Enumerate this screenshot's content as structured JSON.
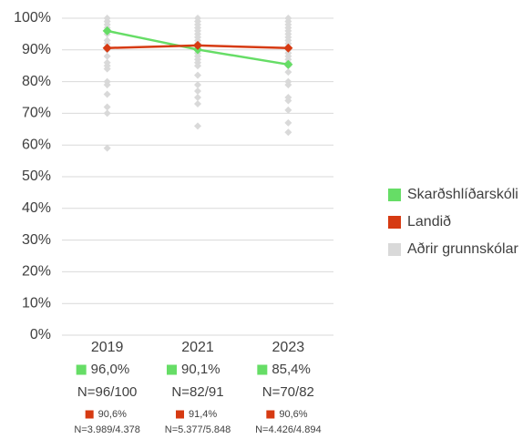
{
  "chart_data": {
    "type": "line",
    "categories": [
      "2019",
      "2021",
      "2023"
    ],
    "ylim": [
      0,
      100
    ],
    "yticks": [
      {
        "value": 0,
        "label": "0%"
      },
      {
        "value": 10,
        "label": "10%"
      },
      {
        "value": 20,
        "label": "20%"
      },
      {
        "value": 30,
        "label": "30%"
      },
      {
        "value": 40,
        "label": "40%"
      },
      {
        "value": 50,
        "label": "50%"
      },
      {
        "value": 60,
        "label": "60%"
      },
      {
        "value": 70,
        "label": "70%"
      },
      {
        "value": 80,
        "label": "80%"
      },
      {
        "value": 90,
        "label": "90%"
      },
      {
        "value": 100,
        "label": "100%"
      }
    ],
    "grid": true,
    "legend": "right",
    "series": [
      {
        "name": "Skarðshlíðarskóli",
        "color": "#66dd66",
        "values": [
          96.0,
          90.1,
          85.4
        ],
        "value_labels": [
          "96,0%",
          "90,1%",
          "85,4%"
        ],
        "n_labels": [
          "N=96/100",
          "N=82/91",
          "N=70/82"
        ]
      },
      {
        "name": "Landið",
        "color": "#d63a12",
        "values": [
          90.6,
          91.4,
          90.6
        ],
        "value_labels": [
          "90,6%",
          "91,4%",
          "90,6%"
        ],
        "n_labels": [
          "N=3.989/4.378",
          "N=5.377/5.848",
          "N=4.426/4.894"
        ]
      },
      {
        "name": "Aðrir grunnskólar",
        "color": "#d9d9d9",
        "values": [
          [
            100,
            99,
            98,
            97,
            96,
            95,
            93,
            92,
            91,
            90,
            88,
            86,
            85,
            84,
            80,
            79,
            76,
            72,
            70,
            59
          ],
          [
            100,
            99,
            98,
            97,
            96,
            95,
            94,
            93,
            92,
            91,
            90,
            89,
            88,
            87,
            86,
            85,
            82,
            79,
            77,
            75,
            73,
            66
          ],
          [
            100,
            99,
            98,
            97,
            96,
            95,
            94,
            93,
            92,
            91,
            90,
            89,
            88,
            87,
            86,
            85,
            83,
            80,
            79,
            75,
            74,
            71,
            67,
            64
          ]
        ]
      }
    ]
  }
}
